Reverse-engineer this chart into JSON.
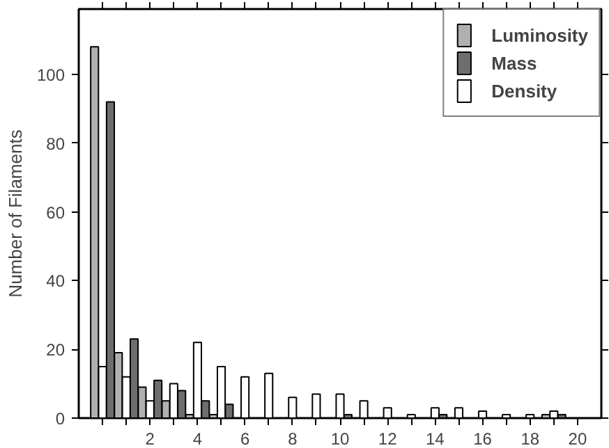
{
  "chart_data": {
    "type": "bar",
    "ylabel": "Number of Filaments",
    "x": [
      0,
      1,
      2,
      3,
      4,
      5,
      6,
      7,
      8,
      9,
      10,
      11,
      12,
      13,
      14,
      15,
      16,
      17,
      18,
      19
    ],
    "series": [
      {
        "name": "Luminosity",
        "color": "#b0b0b0",
        "values": [
          108,
          19,
          9,
          5,
          1,
          1,
          null,
          null,
          null,
          null,
          null,
          null,
          null,
          null,
          null,
          null,
          null,
          null,
          null,
          1
        ]
      },
      {
        "name": "Mass",
        "color": "#6e6e6e",
        "values": [
          92,
          23,
          11,
          8,
          5,
          4,
          null,
          null,
          null,
          null,
          1,
          null,
          null,
          null,
          1,
          null,
          null,
          null,
          null,
          1
        ]
      },
      {
        "name": "Density",
        "color": "#ffffff",
        "values": [
          15,
          12,
          5,
          10,
          22,
          15,
          12,
          13,
          6,
          7,
          7,
          5,
          3,
          1,
          3,
          3,
          2,
          1,
          1,
          2
        ]
      }
    ],
    "xlim": [
      -1,
      21
    ],
    "ylim": [
      0,
      119
    ],
    "xticks": [
      {
        "value": 0,
        "label": null
      },
      {
        "value": 1,
        "label": null
      },
      2,
      {
        "value": 3,
        "label": null
      },
      4,
      {
        "value": 5,
        "label": null
      },
      6,
      {
        "value": 7,
        "label": null
      },
      8,
      {
        "value": 9,
        "label": null
      },
      10,
      {
        "value": 11,
        "label": null
      },
      12,
      {
        "value": 13,
        "label": null
      },
      14,
      {
        "value": 15,
        "label": null
      },
      16,
      {
        "value": 17,
        "label": null
      },
      18,
      {
        "value": 19,
        "label": null
      },
      20
    ],
    "yticks": [
      0,
      20,
      40,
      60,
      80,
      100
    ],
    "grid": false,
    "legend": "top right"
  }
}
